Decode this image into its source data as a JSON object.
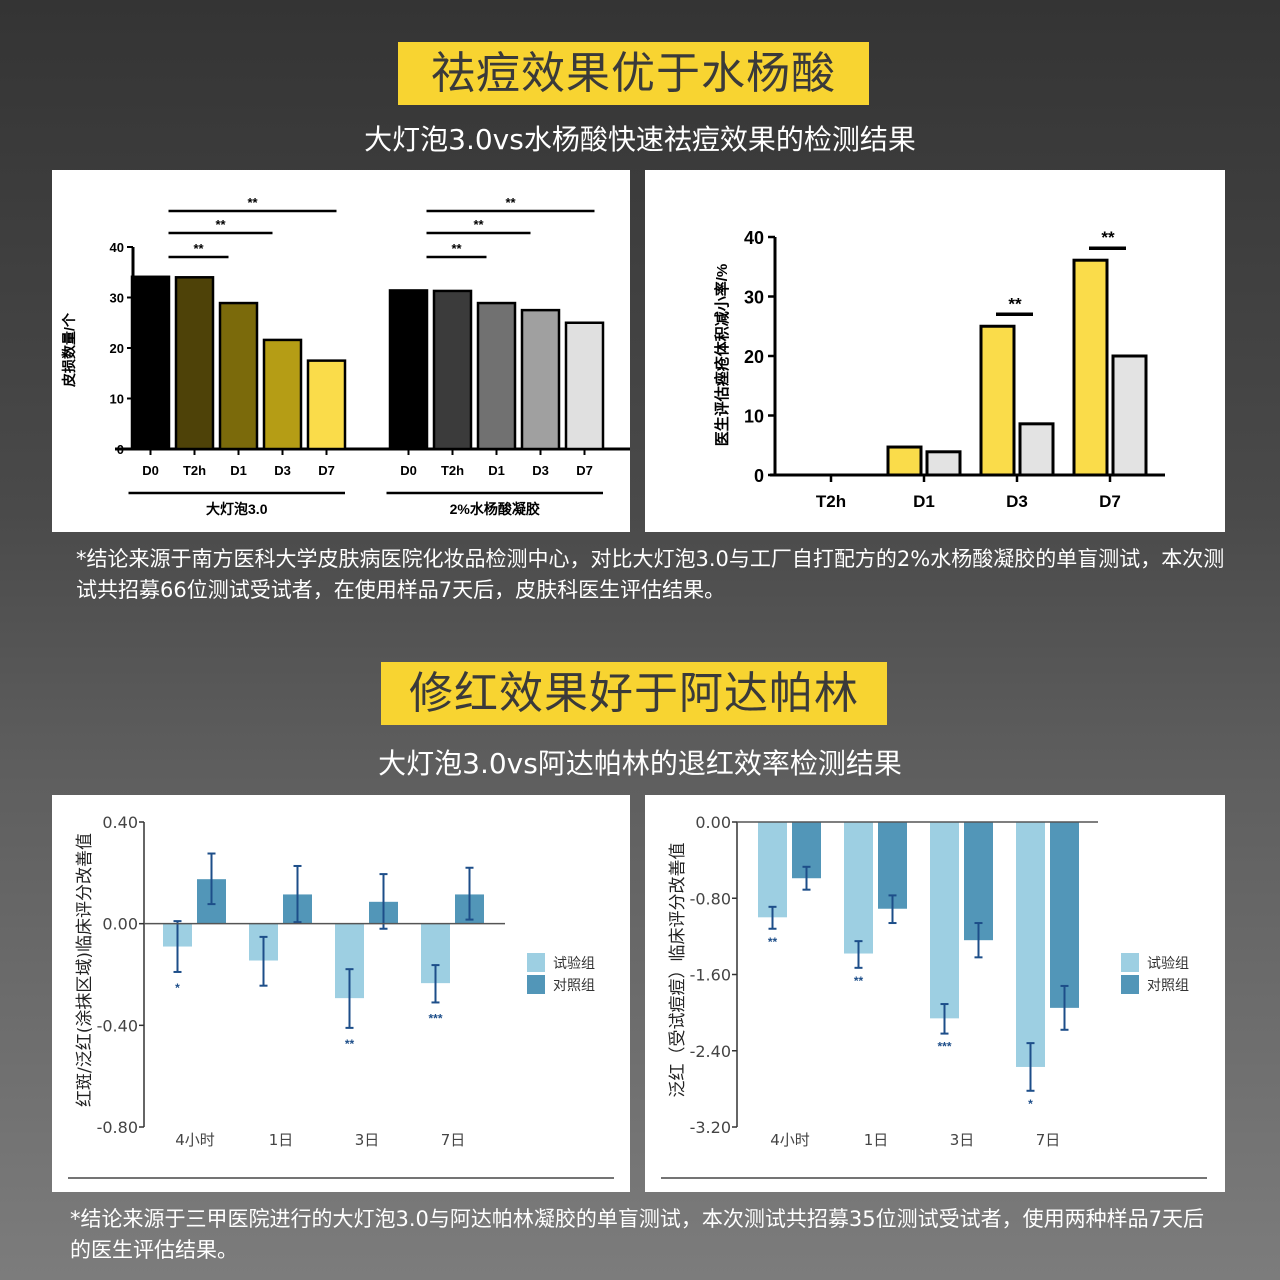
{
  "section1": {
    "title": "祛痘效果优于水杨酸",
    "subtitle": "大灯泡3.0vs水杨酸快速祛痘效果的检测结果",
    "note": "*结论来源于南方医科大学皮肤病医院化妆品检测中心，对比大灯泡3.0与工厂自打配方的2%水杨酸凝胶的单盲测试，本次测试共招募66位测试受试者，在使用样品7天后，皮肤科医生评估结果。"
  },
  "section2": {
    "title": "修红效果好于阿达帕林",
    "subtitle": "大灯泡3.0vs阿达帕林的退红效率检测结果",
    "note": "*结论来源于三甲医院进行的大灯泡3.0与阿达帕林凝胶的单盲测试，本次测试共招募35位测试受试者，使用两种样品7天后的医生评估结果。"
  },
  "chart_data": [
    {
      "type": "bar",
      "ylabel": "皮损数量/个",
      "ylim": [
        0,
        40
      ],
      "yticks": [
        "0",
        "10",
        "20",
        "30",
        "40"
      ],
      "groups": [
        {
          "name": "大灯泡3.0",
          "categories": [
            "D0",
            "T2h",
            "D1",
            "D3",
            "D7"
          ],
          "values": [
            34.1,
            34.0,
            28.9,
            21.6,
            17.5
          ],
          "colors": [
            "#000000",
            "#4e4208",
            "#7b6a0b",
            "#b59d15",
            "#fadc4a"
          ],
          "significance": [
            {
              "from": "D0",
              "to": "D1",
              "label": "**"
            },
            {
              "from": "D0",
              "to": "D3",
              "label": "**"
            },
            {
              "from": "D0",
              "to": "D7",
              "label": "**"
            }
          ]
        },
        {
          "name": "2%水杨酸凝胶",
          "categories": [
            "D0",
            "T2h",
            "D1",
            "D3",
            "D7"
          ],
          "values": [
            31.4,
            31.3,
            28.9,
            27.5,
            25.0
          ],
          "colors": [
            "#000000",
            "#3b3b3b",
            "#717171",
            "#a0a0a0",
            "#e0e0e0"
          ],
          "significance": [
            {
              "from": "D0",
              "to": "D1",
              "label": "**"
            },
            {
              "from": "D0",
              "to": "D3",
              "label": "**"
            },
            {
              "from": "D0",
              "to": "D7",
              "label": "**"
            }
          ]
        }
      ]
    },
    {
      "type": "bar",
      "ylabel": "医生评估痤疮体积减小率/%",
      "ylim": [
        0,
        40
      ],
      "yticks": [
        "0",
        "10",
        "20",
        "30",
        "40"
      ],
      "categories": [
        "T2h",
        "D1",
        "D3",
        "D7"
      ],
      "series": [
        {
          "name": "大灯泡3.0",
          "color": "#fadc4a",
          "values": [
            0,
            4.7,
            25.0,
            36.1
          ]
        },
        {
          "name": "2%水杨酸凝胶",
          "color": "#e3e3e3",
          "values": [
            0,
            3.9,
            8.6,
            20.0
          ]
        }
      ],
      "significance": [
        "",
        "",
        "**",
        "**"
      ]
    },
    {
      "type": "bar",
      "ylabel": "红斑/泛红(涂抹区域)临床评分改善值",
      "ylim": [
        -0.8,
        0.4
      ],
      "yticks": [
        "-0.80",
        "-0.40",
        "0.00",
        "0.40"
      ],
      "categories": [
        "4小时",
        "1日",
        "3日",
        "7日"
      ],
      "series": [
        {
          "name": "试验组",
          "color": "#9dcfe2",
          "values": [
            -0.09,
            -0.145,
            -0.293,
            -0.234
          ],
          "err_low": [
            -0.19,
            -0.244,
            -0.41,
            -0.31
          ],
          "err_high": [
            0.01,
            -0.052,
            -0.179,
            -0.163
          ]
        },
        {
          "name": "对照组",
          "color": "#5296b8",
          "values": [
            0.175,
            0.115,
            0.086,
            0.115
          ],
          "err_low": [
            0.077,
            0.006,
            -0.02,
            0.016
          ],
          "err_high": [
            0.276,
            0.227,
            0.195,
            0.22
          ]
        }
      ],
      "significance": [
        "*",
        "",
        "**",
        "***"
      ],
      "legend": "right"
    },
    {
      "type": "bar",
      "ylabel": "泛红（受试痘痘）临床评分改善值",
      "ylim": [
        -3.2,
        0
      ],
      "yticks": [
        "-3.20",
        "-2.40",
        "-1.60",
        "-0.80",
        "0.00"
      ],
      "categories": [
        "4小时",
        "1日",
        "3日",
        "7日"
      ],
      "series": [
        {
          "name": "试验组",
          "color": "#9dcfe2",
          "values": [
            -1.0,
            -1.38,
            -2.06,
            -2.57
          ],
          "err_low": [
            -1.12,
            -1.53,
            -2.22,
            -2.82
          ],
          "err_high": [
            -0.89,
            -1.25,
            -1.91,
            -2.32
          ]
        },
        {
          "name": "对照组",
          "color": "#5296b8",
          "values": [
            -0.59,
            -0.91,
            -1.24,
            -1.95
          ],
          "err_low": [
            -0.71,
            -1.06,
            -1.42,
            -2.18
          ],
          "err_high": [
            -0.47,
            -0.77,
            -1.06,
            -1.72
          ]
        }
      ],
      "significance": [
        "**",
        "**",
        "***",
        "*"
      ],
      "legend": "right"
    }
  ]
}
